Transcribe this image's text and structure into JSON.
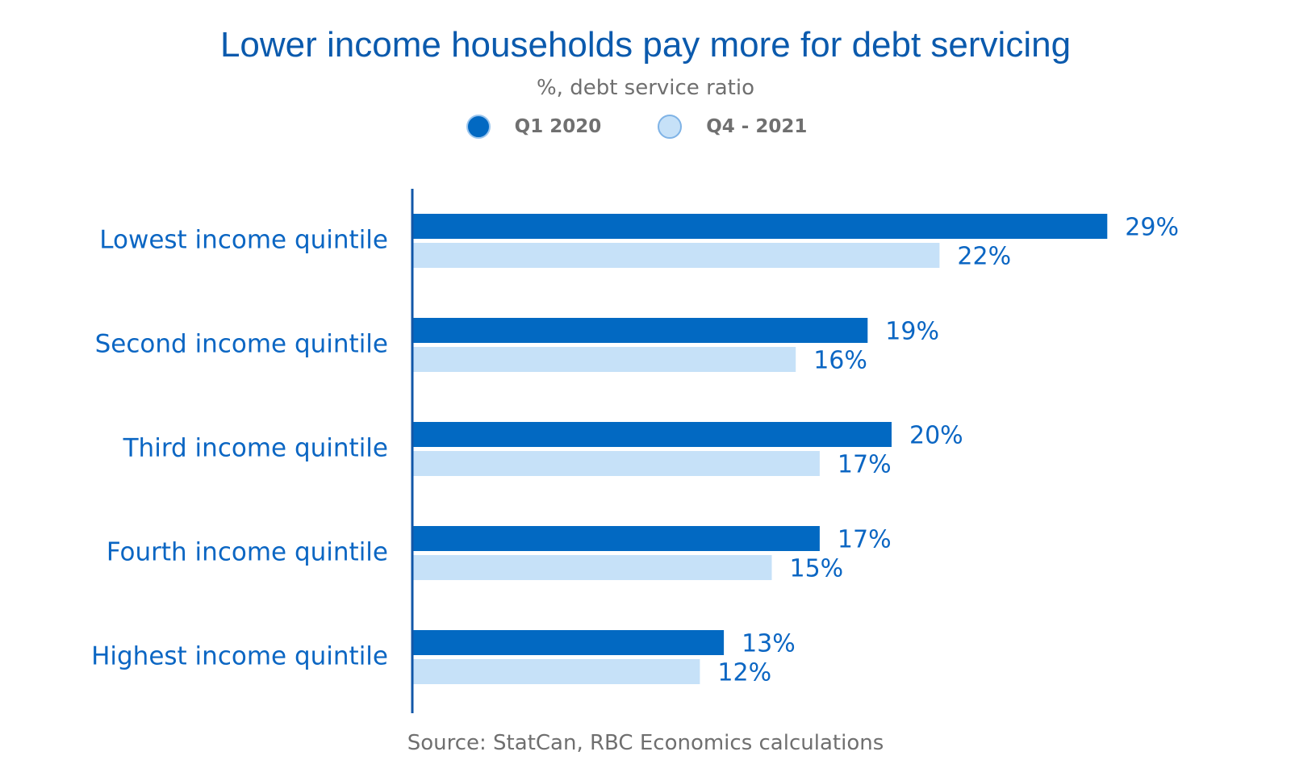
{
  "chart_data": {
    "type": "bar",
    "orientation": "horizontal",
    "title": "Lower income households pay more for debt servicing",
    "subtitle": "%, debt service ratio",
    "categories": [
      "Lowest income quintile",
      "Second income quintile",
      "Third income quintile",
      "Fourth income quintile",
      "Highest income quintile"
    ],
    "series": [
      {
        "name": "Q1 2020",
        "values": [
          29,
          19,
          20,
          17,
          13
        ],
        "labels": [
          "29%",
          "19%",
          "20%",
          "17%",
          "13%"
        ],
        "color": "#0269C2"
      },
      {
        "name": "Q4 - 2021",
        "values": [
          22,
          16,
          17,
          15,
          12
        ],
        "labels": [
          "22%",
          "16%",
          "17%",
          "15%",
          "12%"
        ],
        "color": "#C6E1F8"
      }
    ],
    "legend_position": "top",
    "grid": false,
    "source": "Source: StatCan, RBC Economics calculations",
    "colors": {
      "title": "#0B5AAD",
      "category_label": "#0B66C3",
      "data_label": "#0B66C3",
      "axis": "#1257A8",
      "muted_text": "#6F6F6F"
    }
  }
}
